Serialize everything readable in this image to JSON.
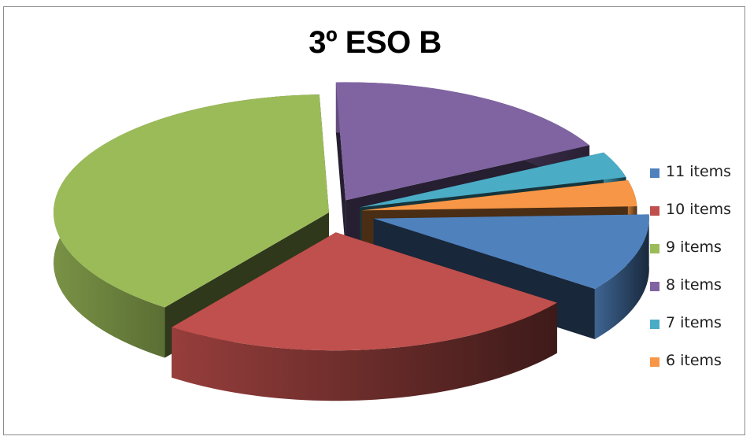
{
  "chart_data": {
    "type": "pie",
    "title": "3º ESO B",
    "categories": [
      "11 items",
      "10 items",
      "9 items",
      "8 items",
      "7 items",
      "6 items"
    ],
    "values": [
      3,
      7,
      11,
      5,
      1,
      1
    ],
    "colors": [
      "#4f81bd",
      "#c0504d",
      "#9bbb59",
      "#8064a2",
      "#4bacc6",
      "#f79646"
    ],
    "style": "3d-exploded",
    "legend_position": "right"
  }
}
